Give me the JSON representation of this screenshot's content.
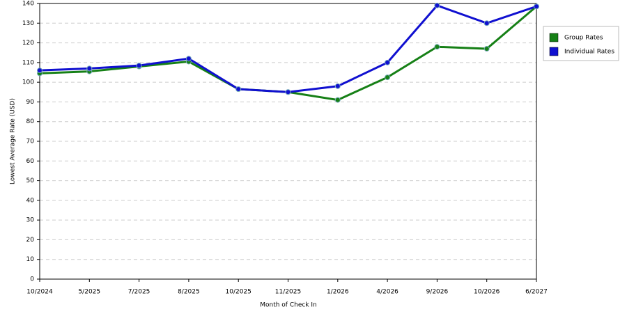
{
  "chart_data": {
    "type": "line",
    "x_label": "Month of Check In",
    "y_label": "Lowest Average Rate (USD)",
    "categories": [
      "10/2024",
      "5/2025",
      "7/2025",
      "8/2025",
      "10/2025",
      "11/2025",
      "1/2026",
      "4/2026",
      "9/2026",
      "10/2026",
      "6/2027"
    ],
    "series": [
      {
        "name": "Group Rates",
        "color": "#168016",
        "values": [
          104.5,
          105.5,
          108,
          110.5,
          96.5,
          95,
          91,
          102.5,
          118,
          117,
          138.5
        ]
      },
      {
        "name": "Individual Rates",
        "color": "#1010d0",
        "values": [
          106,
          107,
          108.5,
          112,
          96.5,
          95,
          98,
          110,
          139,
          130,
          138.5
        ]
      }
    ],
    "ylim": [
      0,
      140
    ],
    "yticks": [
      0,
      10,
      20,
      30,
      40,
      50,
      60,
      70,
      80,
      90,
      100,
      110,
      120,
      130,
      140
    ],
    "grid": true,
    "legend": "right"
  }
}
